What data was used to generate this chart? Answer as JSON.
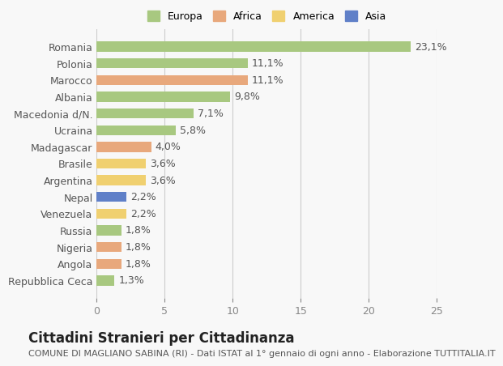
{
  "countries": [
    "Romania",
    "Polonia",
    "Marocco",
    "Albania",
    "Macedonia d/N.",
    "Ucraina",
    "Madagascar",
    "Brasile",
    "Argentina",
    "Nepal",
    "Venezuela",
    "Russia",
    "Nigeria",
    "Angola",
    "Repubblica Ceca"
  ],
  "values": [
    23.1,
    11.1,
    11.1,
    9.8,
    7.1,
    5.8,
    4.0,
    3.6,
    3.6,
    2.2,
    2.2,
    1.8,
    1.8,
    1.8,
    1.3
  ],
  "continents": [
    "Europa",
    "Europa",
    "Africa",
    "Europa",
    "Europa",
    "Europa",
    "Africa",
    "America",
    "America",
    "Asia",
    "America",
    "Europa",
    "Africa",
    "Africa",
    "Europa"
  ],
  "colors": {
    "Europa": "#a8c880",
    "Africa": "#e8a87c",
    "America": "#f0d070",
    "Asia": "#6080c8"
  },
  "legend_colors": {
    "Europa": "#a8c880",
    "Africa": "#e8a87c",
    "America": "#f0d070",
    "Asia": "#6080c8"
  },
  "xlim": [
    0,
    25
  ],
  "xticks": [
    0,
    5,
    10,
    15,
    20,
    25
  ],
  "title": "Cittadini Stranieri per Cittadinanza",
  "subtitle": "COMUNE DI MAGLIANO SABINA (RI) - Dati ISTAT al 1° gennaio di ogni anno - Elaborazione TUTTITALIA.IT",
  "background_color": "#f8f8f8",
  "bar_height": 0.6,
  "value_fontsize": 9,
  "label_fontsize": 9,
  "title_fontsize": 12,
  "subtitle_fontsize": 8
}
